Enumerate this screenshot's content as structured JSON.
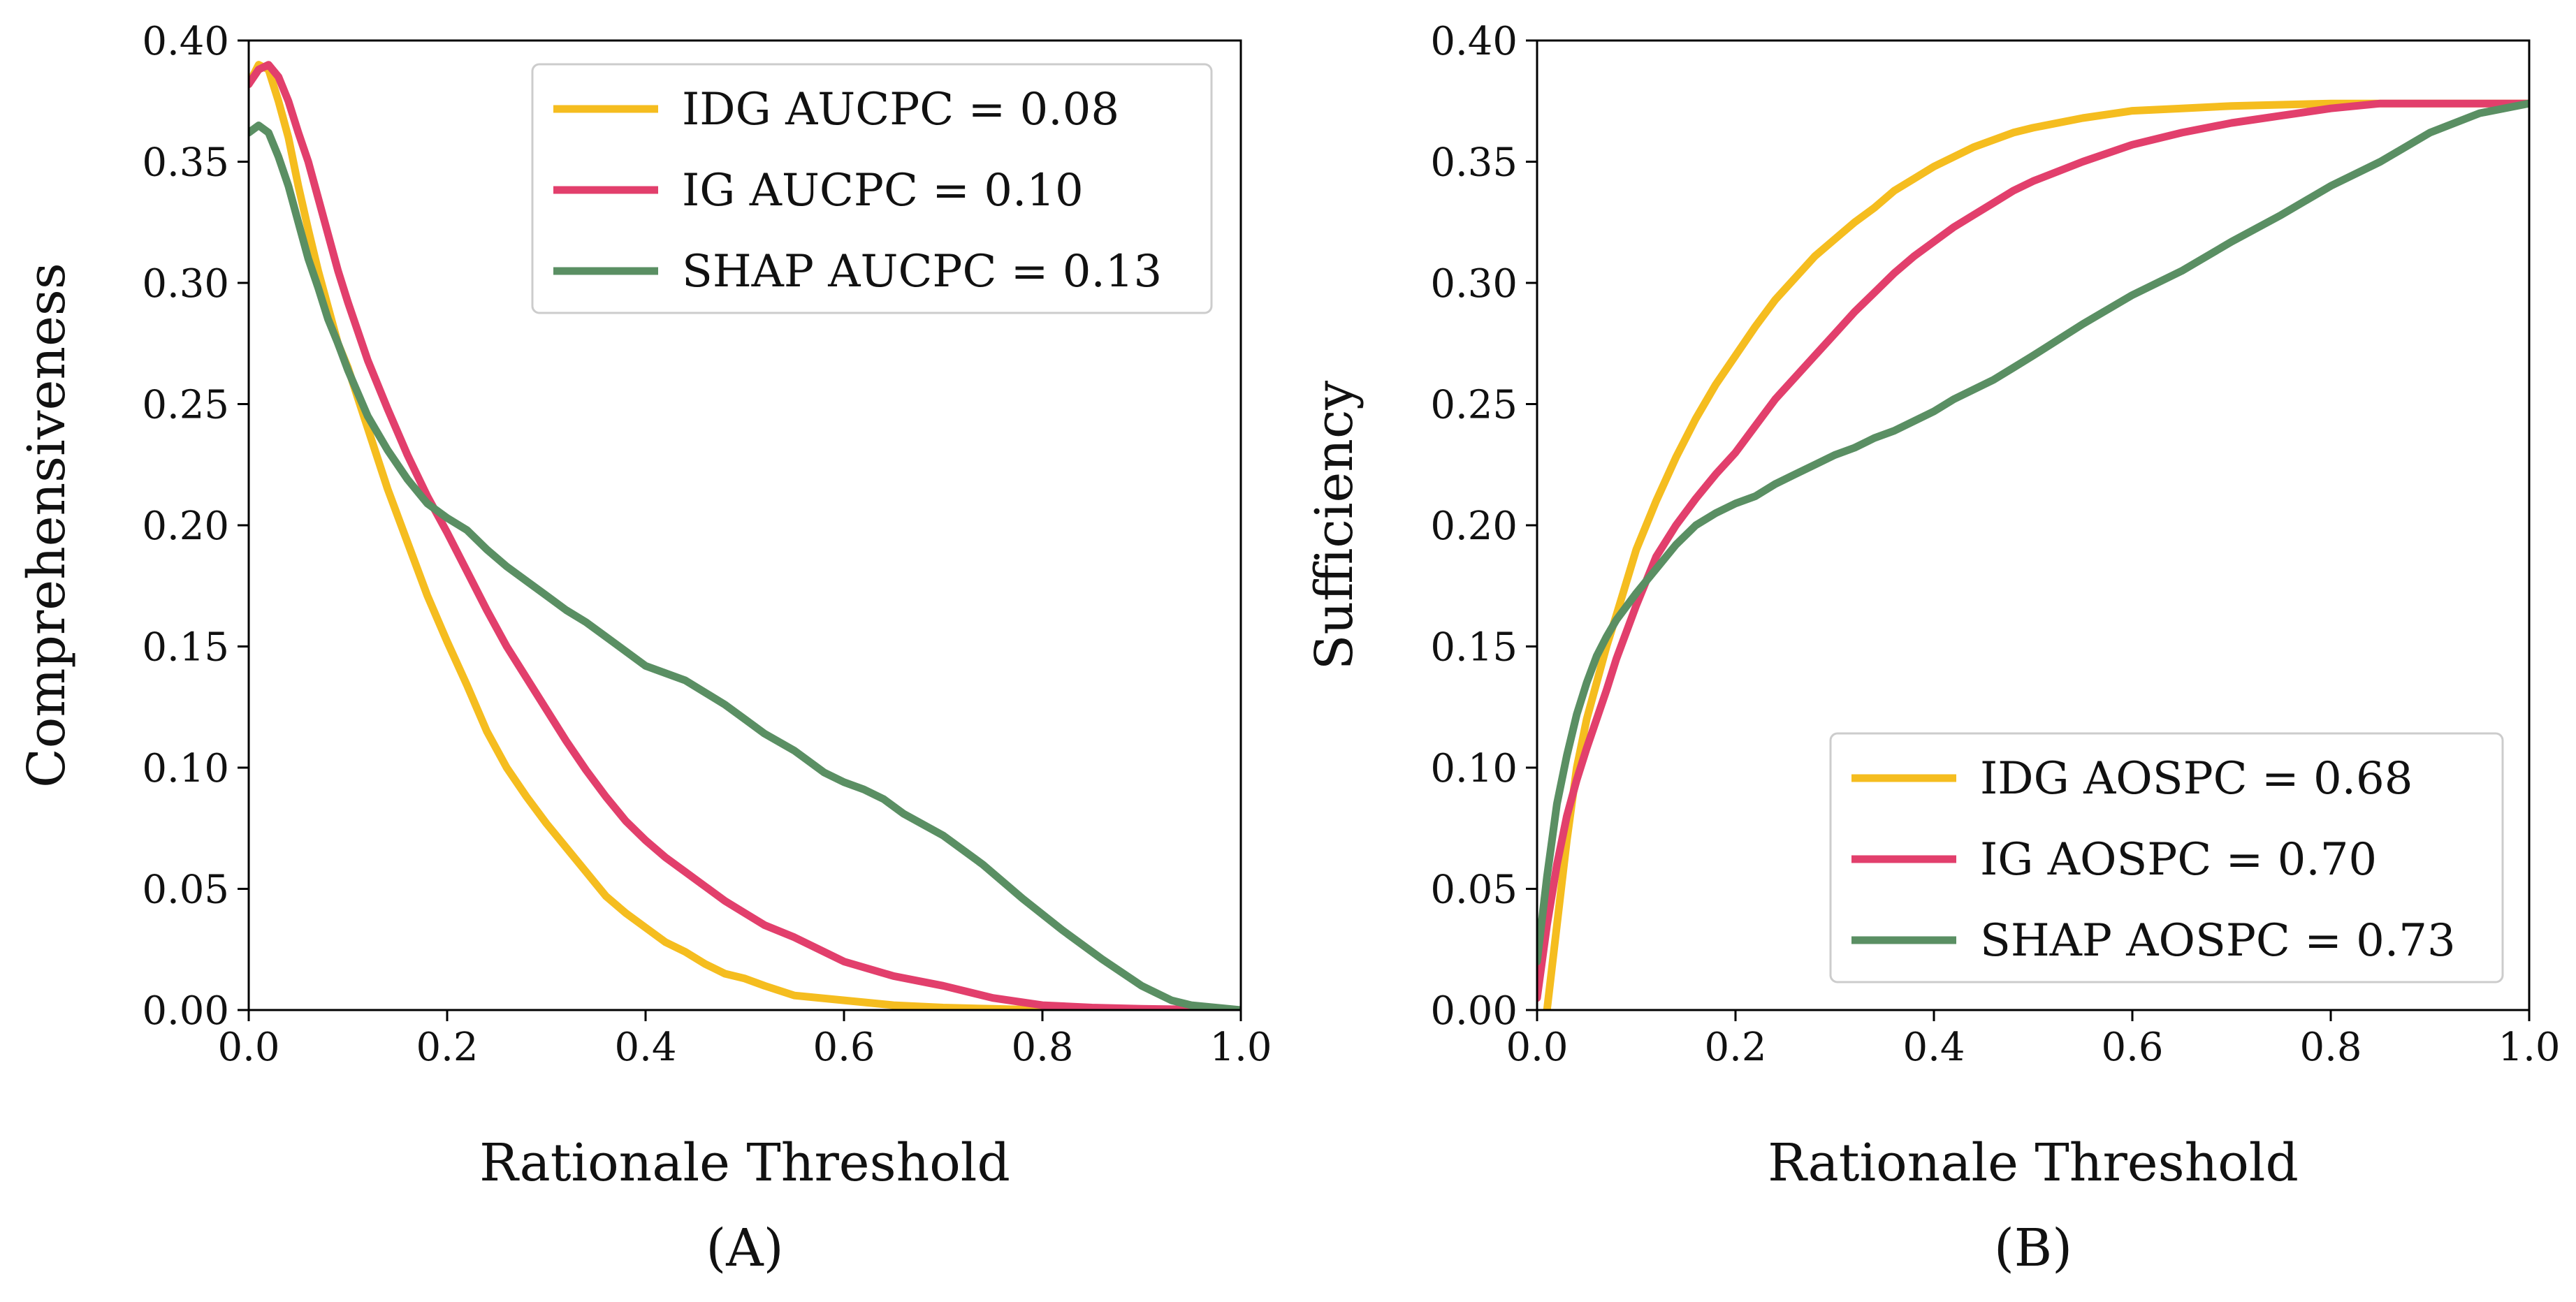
{
  "chart_data": [
    {
      "type": "line",
      "caption": "(A)",
      "xlabel": "Rationale Threshold",
      "ylabel": "Comprehensiveness",
      "xlim": [
        0.0,
        1.0
      ],
      "ylim": [
        0.0,
        0.4
      ],
      "x_ticks": [
        "0.0",
        "0.2",
        "0.4",
        "0.6",
        "0.8",
        "1.0"
      ],
      "y_ticks": [
        "0.00",
        "0.05",
        "0.10",
        "0.15",
        "0.20",
        "0.25",
        "0.30",
        "0.35",
        "0.40"
      ],
      "grid": false,
      "legend_position": "top-right",
      "series": [
        {
          "name": "IDG AUCPC = 0.08",
          "color": "#f5bd1f",
          "x": [
            0,
            0.01,
            0.02,
            0.03,
            0.04,
            0.05,
            0.06,
            0.07,
            0.08,
            0.09,
            0.1,
            0.12,
            0.14,
            0.16,
            0.18,
            0.2,
            0.22,
            0.24,
            0.26,
            0.28,
            0.3,
            0.32,
            0.34,
            0.36,
            0.38,
            0.4,
            0.42,
            0.44,
            0.46,
            0.48,
            0.5,
            0.52,
            0.55,
            0.6,
            0.65,
            0.7,
            0.75,
            0.8,
            0.9,
            1.0
          ],
          "y": [
            0.382,
            0.39,
            0.388,
            0.375,
            0.36,
            0.34,
            0.322,
            0.305,
            0.29,
            0.275,
            0.265,
            0.24,
            0.215,
            0.193,
            0.171,
            0.152,
            0.134,
            0.115,
            0.1,
            0.088,
            0.077,
            0.067,
            0.057,
            0.047,
            0.04,
            0.034,
            0.028,
            0.024,
            0.019,
            0.015,
            0.013,
            0.01,
            0.006,
            0.004,
            0.002,
            0.001,
            0.0005,
            0,
            0,
            0
          ]
        },
        {
          "name": "IG AUCPC = 0.10",
          "color": "#e23f6c",
          "x": [
            0,
            0.01,
            0.02,
            0.03,
            0.04,
            0.05,
            0.06,
            0.07,
            0.08,
            0.09,
            0.1,
            0.12,
            0.14,
            0.16,
            0.18,
            0.2,
            0.22,
            0.24,
            0.26,
            0.28,
            0.3,
            0.32,
            0.34,
            0.36,
            0.38,
            0.4,
            0.42,
            0.44,
            0.46,
            0.48,
            0.5,
            0.52,
            0.55,
            0.6,
            0.65,
            0.7,
            0.75,
            0.8,
            0.85,
            0.9,
            1.0
          ],
          "y": [
            0.382,
            0.388,
            0.39,
            0.385,
            0.375,
            0.362,
            0.35,
            0.335,
            0.32,
            0.305,
            0.292,
            0.268,
            0.248,
            0.229,
            0.212,
            0.197,
            0.181,
            0.165,
            0.15,
            0.137,
            0.124,
            0.111,
            0.099,
            0.088,
            0.078,
            0.07,
            0.063,
            0.057,
            0.051,
            0.045,
            0.04,
            0.035,
            0.03,
            0.02,
            0.014,
            0.01,
            0.005,
            0.002,
            0.001,
            0.0005,
            0
          ]
        },
        {
          "name": "SHAP AUCPC = 0.13",
          "color": "#5a8f63",
          "x": [
            0,
            0.01,
            0.02,
            0.03,
            0.04,
            0.05,
            0.06,
            0.07,
            0.08,
            0.09,
            0.1,
            0.12,
            0.14,
            0.16,
            0.18,
            0.2,
            0.22,
            0.24,
            0.26,
            0.28,
            0.3,
            0.32,
            0.34,
            0.36,
            0.38,
            0.4,
            0.42,
            0.44,
            0.46,
            0.48,
            0.5,
            0.52,
            0.55,
            0.58,
            0.6,
            0.62,
            0.64,
            0.66,
            0.7,
            0.74,
            0.78,
            0.82,
            0.86,
            0.9,
            0.93,
            0.95,
            1.0
          ],
          "y": [
            0.362,
            0.365,
            0.362,
            0.352,
            0.34,
            0.325,
            0.31,
            0.298,
            0.285,
            0.275,
            0.264,
            0.245,
            0.231,
            0.219,
            0.209,
            0.203,
            0.198,
            0.19,
            0.183,
            0.177,
            0.171,
            0.165,
            0.16,
            0.154,
            0.148,
            0.142,
            0.139,
            0.136,
            0.131,
            0.126,
            0.12,
            0.114,
            0.107,
            0.098,
            0.094,
            0.091,
            0.087,
            0.081,
            0.072,
            0.06,
            0.046,
            0.033,
            0.021,
            0.01,
            0.004,
            0.002,
            0
          ]
        }
      ]
    },
    {
      "type": "line",
      "caption": "(B)",
      "xlabel": "Rationale Threshold",
      "ylabel": "Sufficiency",
      "xlim": [
        0.0,
        1.0
      ],
      "ylim": [
        0.0,
        0.4
      ],
      "x_ticks": [
        "0.0",
        "0.2",
        "0.4",
        "0.6",
        "0.8",
        "1.0"
      ],
      "y_ticks": [
        "0.00",
        "0.05",
        "0.10",
        "0.15",
        "0.20",
        "0.25",
        "0.30",
        "0.35",
        "0.40"
      ],
      "grid": false,
      "legend_position": "bottom-right",
      "series": [
        {
          "name": "IDG AOSPC = 0.68",
          "color": "#f5bd1f",
          "x": [
            0.01,
            0.02,
            0.03,
            0.04,
            0.05,
            0.06,
            0.07,
            0.08,
            0.1,
            0.12,
            0.14,
            0.16,
            0.18,
            0.2,
            0.22,
            0.24,
            0.26,
            0.28,
            0.3,
            0.32,
            0.34,
            0.36,
            0.38,
            0.4,
            0.42,
            0.44,
            0.46,
            0.48,
            0.5,
            0.55,
            0.6,
            0.65,
            0.7,
            0.8,
            1.0
          ],
          "y": [
            0.0,
            0.035,
            0.07,
            0.1,
            0.12,
            0.135,
            0.15,
            0.163,
            0.19,
            0.21,
            0.228,
            0.244,
            0.258,
            0.27,
            0.282,
            0.293,
            0.302,
            0.311,
            0.318,
            0.325,
            0.331,
            0.338,
            0.343,
            0.348,
            0.352,
            0.356,
            0.359,
            0.362,
            0.364,
            0.368,
            0.371,
            0.372,
            0.373,
            0.374,
            0.374
          ]
        },
        {
          "name": "IG AOSPC = 0.70",
          "color": "#e23f6c",
          "x": [
            0,
            0.01,
            0.02,
            0.03,
            0.04,
            0.05,
            0.06,
            0.07,
            0.08,
            0.1,
            0.12,
            0.14,
            0.16,
            0.18,
            0.2,
            0.22,
            0.24,
            0.26,
            0.28,
            0.3,
            0.32,
            0.34,
            0.36,
            0.38,
            0.4,
            0.42,
            0.44,
            0.46,
            0.48,
            0.5,
            0.55,
            0.6,
            0.65,
            0.7,
            0.75,
            0.8,
            0.85,
            1.0
          ],
          "y": [
            0.005,
            0.035,
            0.06,
            0.08,
            0.095,
            0.108,
            0.12,
            0.132,
            0.145,
            0.167,
            0.187,
            0.2,
            0.211,
            0.221,
            0.23,
            0.241,
            0.252,
            0.261,
            0.27,
            0.279,
            0.288,
            0.296,
            0.304,
            0.311,
            0.317,
            0.323,
            0.328,
            0.333,
            0.338,
            0.342,
            0.35,
            0.357,
            0.362,
            0.366,
            0.369,
            0.372,
            0.374,
            0.374
          ]
        },
        {
          "name": "SHAP AOSPC = 0.73",
          "color": "#5a8f63",
          "x": [
            0,
            0.01,
            0.02,
            0.03,
            0.04,
            0.05,
            0.06,
            0.07,
            0.08,
            0.1,
            0.12,
            0.14,
            0.16,
            0.18,
            0.2,
            0.22,
            0.24,
            0.26,
            0.28,
            0.3,
            0.32,
            0.34,
            0.36,
            0.38,
            0.4,
            0.42,
            0.44,
            0.46,
            0.48,
            0.5,
            0.55,
            0.6,
            0.65,
            0.7,
            0.75,
            0.8,
            0.85,
            0.9,
            0.95,
            1.0
          ],
          "y": [
            0.02,
            0.055,
            0.085,
            0.105,
            0.122,
            0.135,
            0.146,
            0.154,
            0.161,
            0.172,
            0.182,
            0.192,
            0.2,
            0.205,
            0.209,
            0.212,
            0.217,
            0.221,
            0.225,
            0.229,
            0.232,
            0.236,
            0.239,
            0.243,
            0.247,
            0.252,
            0.256,
            0.26,
            0.265,
            0.27,
            0.283,
            0.295,
            0.305,
            0.317,
            0.328,
            0.34,
            0.35,
            0.362,
            0.37,
            0.374
          ]
        }
      ]
    }
  ]
}
